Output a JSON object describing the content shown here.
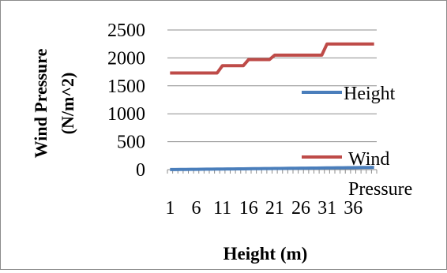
{
  "chart_data": {
    "type": "line",
    "xlabel": "Height (m)",
    "ylabel_lines": [
      "Wind Pressure",
      "(N/m^2)"
    ],
    "ylim": [
      0,
      2500
    ],
    "yticks": [
      0,
      500,
      1000,
      1500,
      2000,
      2500
    ],
    "x": [
      1,
      2,
      3,
      4,
      5,
      6,
      7,
      8,
      9,
      10,
      11,
      12,
      13,
      14,
      15,
      16,
      17,
      18,
      19,
      20,
      21,
      22,
      23,
      24,
      25,
      26,
      27,
      28,
      29,
      30,
      31,
      32,
      33,
      34,
      35,
      36,
      37,
      38,
      39,
      40
    ],
    "xticklabels": [
      "1",
      "6",
      "11",
      "16",
      "21",
      "26",
      "31",
      "36"
    ],
    "grid": true,
    "legend_position": "right",
    "series": [
      {
        "name": "Height",
        "color": "#4a7ebb",
        "values": [
          1,
          2,
          3,
          4,
          5,
          6,
          7,
          8,
          9,
          10,
          11,
          12,
          13,
          14,
          15,
          16,
          17,
          18,
          19,
          20,
          21,
          22,
          23,
          24,
          25,
          26,
          27,
          28,
          29,
          30,
          31,
          32,
          33,
          34,
          35,
          36,
          37,
          38,
          39,
          40
        ]
      },
      {
        "name": "Wind Pressure",
        "legend_lines": [
          "Wind",
          "Pressure"
        ],
        "color": "#be4b48",
        "values": [
          1730,
          1730,
          1730,
          1730,
          1730,
          1730,
          1730,
          1730,
          1730,
          1730,
          1860,
          1860,
          1860,
          1860,
          1860,
          1970,
          1970,
          1970,
          1970,
          1970,
          2050,
          2050,
          2050,
          2050,
          2050,
          2050,
          2050,
          2050,
          2050,
          2050,
          2250,
          2250,
          2250,
          2250,
          2250,
          2250,
          2250,
          2250,
          2250,
          2250
        ]
      }
    ]
  }
}
